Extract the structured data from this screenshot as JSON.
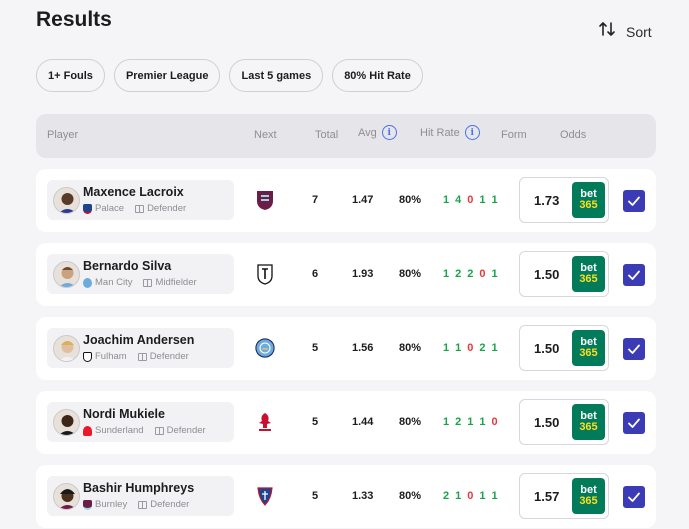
{
  "header": {
    "title": "Results",
    "sort_label": "Sort"
  },
  "filters": [
    "1+ Fouls",
    "Premier League",
    "Last 5 games",
    "80% Hit Rate"
  ],
  "columns": {
    "player": "Player",
    "next": "Next",
    "total": "Total",
    "avg": "Avg",
    "hit_rate": "Hit Rate",
    "form": "Form",
    "odds": "Odds",
    "info_glyph": "i"
  },
  "rows": [
    {
      "name": "Maxence Lacroix",
      "team": "Palace",
      "position": "Defender",
      "total": "7",
      "avg": "1.47",
      "hit_rate": "80%",
      "form": [
        "1",
        "4",
        "0",
        "1",
        "1"
      ],
      "odds": "1.73"
    },
    {
      "name": "Bernardo Silva",
      "team": "Man City",
      "position": "Midfielder",
      "total": "6",
      "avg": "1.93",
      "hit_rate": "80%",
      "form": [
        "1",
        "2",
        "2",
        "0",
        "1"
      ],
      "odds": "1.50"
    },
    {
      "name": "Joachim Andersen",
      "team": "Fulham",
      "position": "Defender",
      "total": "5",
      "avg": "1.56",
      "hit_rate": "80%",
      "form": [
        "1",
        "1",
        "0",
        "2",
        "1"
      ],
      "odds": "1.50"
    },
    {
      "name": "Nordi Mukiele",
      "team": "Sunderland",
      "position": "Defender",
      "total": "5",
      "avg": "1.44",
      "hit_rate": "80%",
      "form": [
        "1",
        "2",
        "1",
        "1",
        "0"
      ],
      "odds": "1.50"
    },
    {
      "name": "Bashir Humphreys",
      "team": "Burnley",
      "position": "Defender",
      "total": "5",
      "avg": "1.33",
      "hit_rate": "80%",
      "form": [
        "2",
        "1",
        "0",
        "1",
        "1"
      ],
      "odds": "1.57"
    }
  ],
  "bookmaker": {
    "line1": "bet",
    "line2": "365"
  },
  "colors": {
    "win": "#1aa34a",
    "loss": "#e5393b",
    "checkbox": "#3b3bb5",
    "bet365": "#027b5b",
    "info": "#4a72e8"
  },
  "icons": [
    "sort-arrows-icon",
    "info-icon",
    "check-icon",
    "position-pitch-icon",
    "club-crest-icon",
    "player-avatar"
  ]
}
